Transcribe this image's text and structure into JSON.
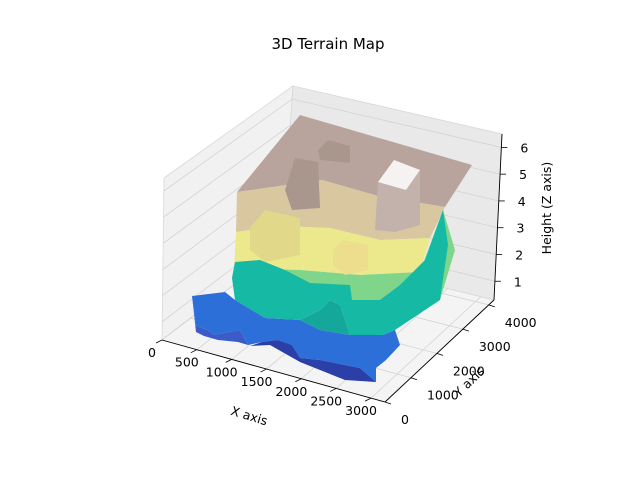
{
  "chart_data": {
    "type": "surface",
    "title": "3D Terrain Map",
    "xlabel": "X axis",
    "ylabel": "Y axis",
    "zlabel": "Height (Z axis)",
    "x_ticks": [
      "0",
      "500",
      "1000",
      "1500",
      "2000",
      "2500",
      "3000"
    ],
    "y_ticks": [
      "0",
      "1000",
      "2000",
      "3000",
      "4000"
    ],
    "z_ticks": [
      "1",
      "2",
      "3",
      "4",
      "5",
      "6"
    ],
    "xlim": [
      0,
      3200
    ],
    "ylim": [
      0,
      4200
    ],
    "zlim": [
      0.3,
      6.5
    ],
    "colormap": "terrain",
    "grid": true
  }
}
